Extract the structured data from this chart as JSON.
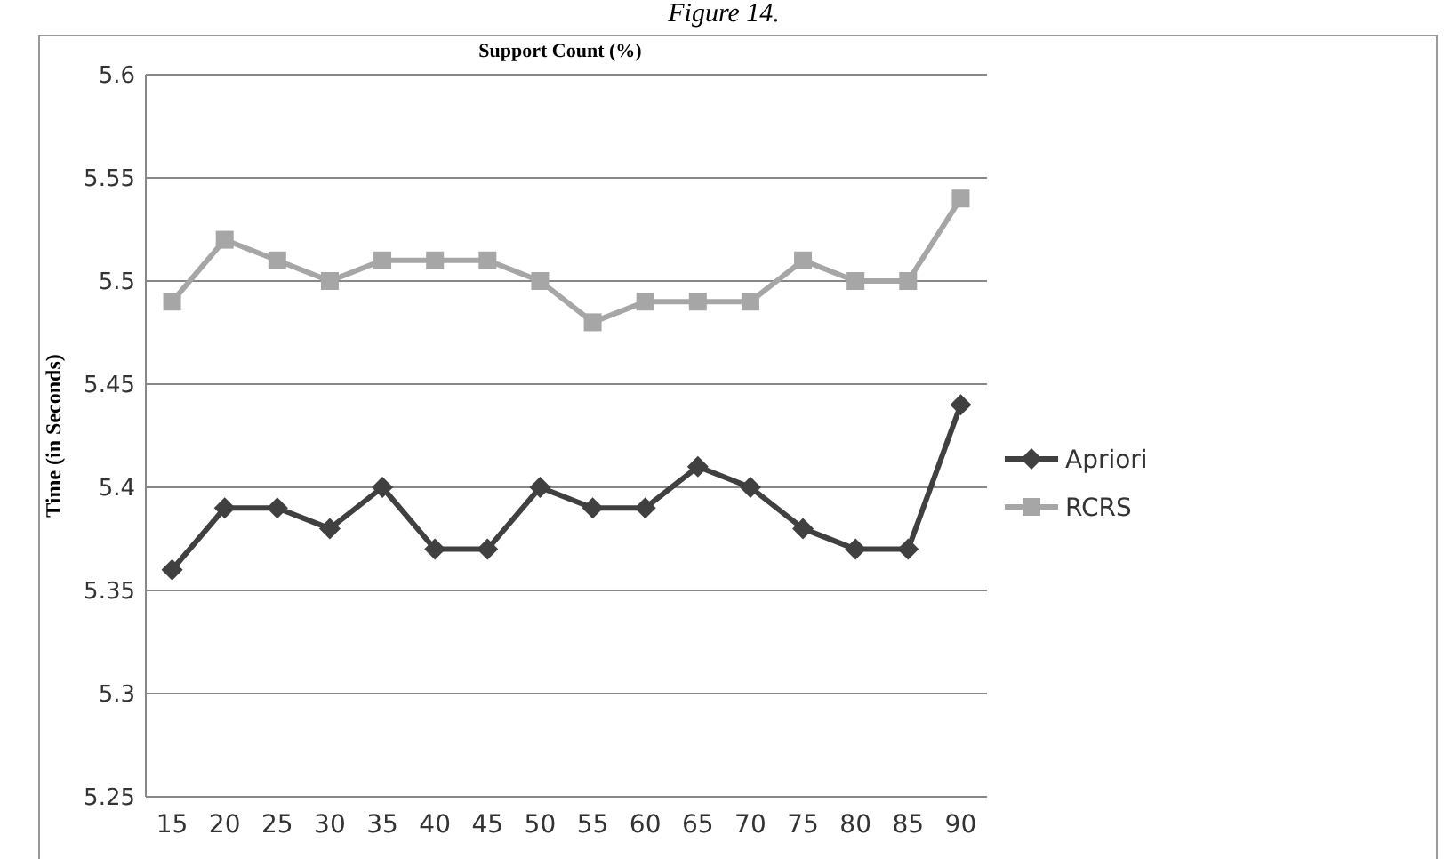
{
  "chart_data": {
    "type": "line",
    "xlabel": "Support Count (%)",
    "ylabel": "Time (in Seconds)",
    "annotations": [
      "Figure 14."
    ],
    "categories": [
      "15",
      "20",
      "25",
      "30",
      "35",
      "40",
      "45",
      "50",
      "55",
      "60",
      "65",
      "70",
      "75",
      "80",
      "85",
      "90"
    ],
    "series": [
      {
        "name": "Apriori",
        "color": "#404040",
        "marker": "diamond",
        "values": [
          5.36,
          5.39,
          5.39,
          5.38,
          5.4,
          5.37,
          5.37,
          5.4,
          5.39,
          5.39,
          5.41,
          5.4,
          5.38,
          5.37,
          5.37,
          5.44
        ]
      },
      {
        "name": "RCRS",
        "color": "#a6a6a6",
        "marker": "square",
        "values": [
          5.49,
          5.52,
          5.51,
          5.5,
          5.51,
          5.51,
          5.51,
          5.5,
          5.48,
          5.49,
          5.49,
          5.49,
          5.51,
          5.5,
          5.5,
          5.54
        ]
      }
    ],
    "ylim": [
      5.25,
      5.6
    ],
    "yticks": [
      5.25,
      5.3,
      5.35,
      5.4,
      5.45,
      5.5,
      5.55,
      5.6
    ],
    "grid": "y",
    "legend": "right",
    "line_style": "solid"
  }
}
